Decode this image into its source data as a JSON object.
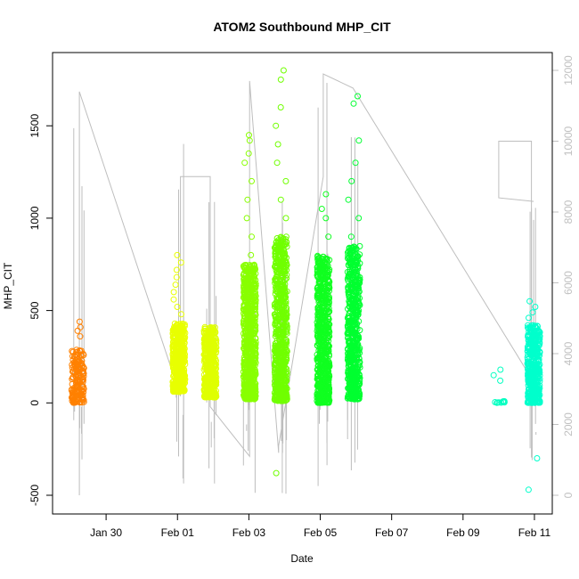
{
  "chart_data": {
    "type": "scatter",
    "title": "ATOM2 Southbound MHP_CIT",
    "xlabel": "Date",
    "ylabel": "MHP_CIT",
    "x_domain": [
      "2014-01-28 12:00",
      "2014-02-11 12:00"
    ],
    "x_ticks": [
      {
        "label": "Jan 30",
        "date": "2014-01-30"
      },
      {
        "label": "Feb 01",
        "date": "2014-02-01"
      },
      {
        "label": "Feb 03",
        "date": "2014-02-03"
      },
      {
        "label": "Feb 05",
        "date": "2014-02-05"
      },
      {
        "label": "Feb 07",
        "date": "2014-02-07"
      },
      {
        "label": "Feb 09",
        "date": "2014-02-09"
      },
      {
        "label": "Feb 11",
        "date": "2014-02-11"
      }
    ],
    "ylim": [
      -500,
      1800
    ],
    "y_ticks": [
      -500,
      0,
      500,
      1000,
      1500
    ],
    "y2lim": [
      0,
      12000
    ],
    "y2_ticks": [
      0,
      2000,
      4000,
      6000,
      8000,
      10000,
      12000
    ],
    "y2_color": "#c0c0c0",
    "line_color": "#bebebe",
    "grid": false,
    "clusters": [
      {
        "date": "2014-01-29 05:00",
        "color": "#ff8000",
        "n": 160,
        "core_min": 0,
        "core_max": 290,
        "outliers": [
          360,
          390,
          410,
          440
        ]
      },
      {
        "date": "2014-02-01 01:00",
        "color": "#e8ff00",
        "n": 500,
        "core_min": 60,
        "core_max": 430,
        "outliers": [
          480,
          520,
          560,
          600,
          640,
          680,
          720,
          760,
          800
        ]
      },
      {
        "date": "2014-02-01 22:00",
        "color": "#dfff00",
        "n": 420,
        "core_min": 30,
        "core_max": 410,
        "outliers": []
      },
      {
        "date": "2014-02-03 00:30",
        "color": "#88ff00",
        "n": 700,
        "core_min": 20,
        "core_max": 750,
        "outliers": [
          800,
          900,
          1000,
          1100,
          1200,
          1300,
          1350,
          1420,
          1450
        ]
      },
      {
        "date": "2014-02-03 21:30",
        "color": "#70ff00",
        "n": 700,
        "core_min": 10,
        "core_max": 900,
        "outliers": [
          -380,
          1000,
          1100,
          1200,
          1300,
          1400,
          1500,
          1600,
          1750,
          1800
        ]
      },
      {
        "date": "2014-02-05 02:00",
        "color": "#10ff20",
        "n": 650,
        "core_min": 0,
        "core_max": 800,
        "outliers": [
          900,
          1000,
          1050,
          1130
        ]
      },
      {
        "date": "2014-02-05 22:30",
        "color": "#00ff30",
        "n": 600,
        "core_min": 20,
        "core_max": 850,
        "outliers": [
          900,
          1000,
          1100,
          1200,
          1300,
          1420,
          1620,
          1660
        ]
      },
      {
        "date": "2014-02-10 00:00",
        "color": "#00ffc0",
        "n": 10,
        "core_min": 0,
        "core_max": 10,
        "outliers": [
          120,
          150,
          180
        ]
      },
      {
        "date": "2014-02-10 23:30",
        "color": "#00ffcc",
        "n": 420,
        "core_min": 0,
        "core_max": 420,
        "outliers": [
          460,
          490,
          520,
          550,
          -300,
          -470
        ]
      }
    ],
    "secondary_series": {
      "name": "",
      "points": [
        [
          "2014-01-29 06:00",
          0
        ],
        [
          "2014-01-29 06:00",
          11400
        ],
        [
          "2014-02-01 02:00",
          2800
        ],
        [
          "2014-02-01 02:00",
          9000
        ],
        [
          "2014-02-01 22:00",
          9000
        ],
        [
          "2014-02-01 22:00",
          2500
        ],
        [
          "2014-02-03 00:30",
          1100
        ],
        [
          "2014-02-03 00:30",
          11700
        ],
        [
          "2014-02-03 20:00",
          1200
        ],
        [
          "2014-02-03 20:00",
          1400
        ],
        [
          "2014-02-05 02:00",
          9000
        ],
        [
          "2014-02-05 02:00",
          11900
        ],
        [
          "2014-02-05 22:00",
          11500
        ],
        [
          "2014-02-10 22:00",
          3300
        ],
        [
          "2014-02-10 22:00",
          10000
        ],
        [
          "2014-02-10 00:00",
          10000
        ],
        [
          "2014-02-10 00:00",
          8400
        ],
        [
          "2014-02-10 23:30",
          8300
        ]
      ]
    }
  }
}
